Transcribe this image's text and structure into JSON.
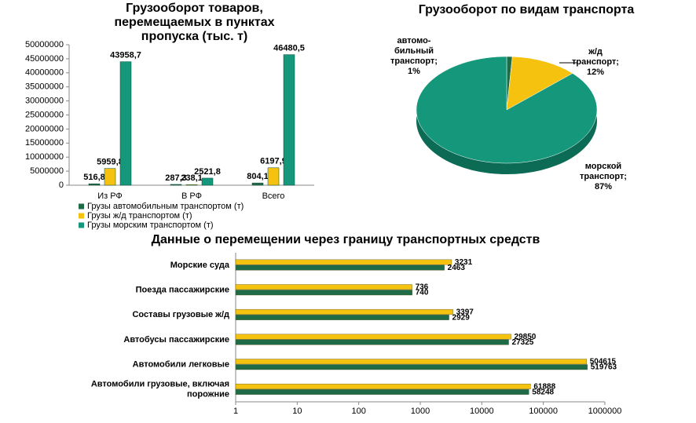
{
  "chart_data": [
    {
      "type": "bar",
      "title": "Грузооборот товаров, перемещаемых в пунктах пропуска (тыс. т)",
      "categories": [
        "Из РФ",
        "В РФ",
        "Всего"
      ],
      "series": [
        {
          "name": "Грузы автомобильным транспортом (т)",
          "color": "#1f6b47",
          "values": [
            516800,
            287300,
            804100
          ],
          "value_labels": [
            "516,8",
            "287,3",
            "804,1"
          ]
        },
        {
          "name": "Грузы ж/д транспортом (т)",
          "color": "#f5c20f",
          "values": [
            5959800,
            238100,
            6197900
          ],
          "value_labels": [
            "5959,8",
            "238,1",
            "6197,9"
          ]
        },
        {
          "name": "Грузы морским транспортом (т)",
          "color": "#14977a",
          "values": [
            43958700,
            2521800,
            46480500
          ],
          "value_labels": [
            "43958,7",
            "2521,8",
            "46480,5"
          ]
        }
      ],
      "ylim": [
        0,
        50000000
      ],
      "yticks": [
        0,
        5000000,
        10000000,
        15000000,
        20000000,
        25000000,
        30000000,
        35000000,
        40000000,
        45000000,
        50000000
      ],
      "legend": "bottom"
    },
    {
      "type": "pie",
      "title": "Грузооборот по видам транспорта",
      "categories": [
        "автомо-бильный транспорт;",
        "ж/д транспорт;",
        "морской транспорт;"
      ],
      "values": [
        1,
        12,
        87
      ],
      "value_labels": [
        "1%",
        "12%",
        "87%"
      ],
      "colors": [
        "#1f6b47",
        "#f5c20f",
        "#14977a"
      ]
    },
    {
      "type": "bar",
      "orientation": "horizontal",
      "title": "Данные о перемещении через границу транспортных средств",
      "categories": [
        "Морские суда",
        "Поезда пассажирские",
        "Составы грузовые ж/д",
        "Автобусы пассажирские",
        "Автомобили легковые",
        "Автомобили грузовые, включая порожние"
      ],
      "series": [
        {
          "color": "#f5c20f",
          "values": [
            3231,
            736,
            3397,
            29850,
            504615,
            61888
          ]
        },
        {
          "color": "#1f6b47",
          "values": [
            2463,
            740,
            2929,
            27325,
            519763,
            58248
          ]
        }
      ],
      "xlim": [
        1,
        1000000
      ],
      "xticks": [
        1,
        10,
        100,
        1000,
        10000,
        100000,
        1000000
      ],
      "log_scale": true
    }
  ]
}
